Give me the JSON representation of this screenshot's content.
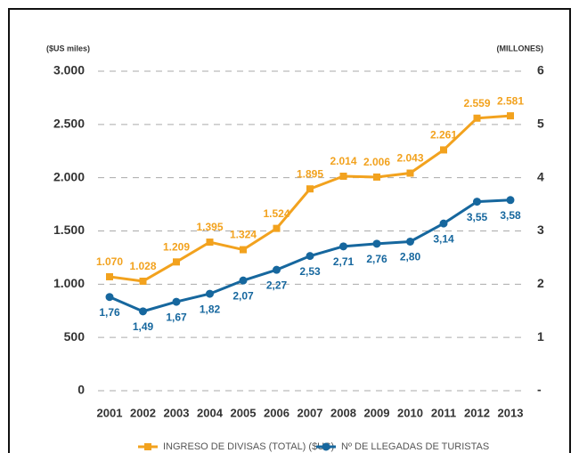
{
  "chart_data": {
    "type": "line",
    "ylabel": "($US miles)",
    "y2label": "(MILLONES)",
    "categories": [
      "2001",
      "2002",
      "2003",
      "2004",
      "2005",
      "2006",
      "2007",
      "2008",
      "2009",
      "2010",
      "2011",
      "2012",
      "2013"
    ],
    "series": [
      {
        "name": "INGRESO DE DIVISAS (TOTAL) ($US)",
        "color": "#f2a21e",
        "values": [
          1070,
          1028,
          1209,
          1395,
          1324,
          1524,
          1895,
          2014,
          2006,
          2043,
          2261,
          2559,
          2581
        ],
        "value_labels": [
          "1.070",
          "1.028",
          "1.209",
          "1.395",
          "1.324",
          "1.524",
          "1.895",
          "2.014",
          "2.006",
          "2.043",
          "2.261",
          "2.559",
          "2.581"
        ]
      },
      {
        "name": "Nº DE LLEGADAS DE TURISTAS",
        "color": "#16679e",
        "axis": "y2",
        "values": [
          1.76,
          1.49,
          1.67,
          1.82,
          2.07,
          2.27,
          2.53,
          2.71,
          2.76,
          2.8,
          3.14,
          3.55,
          3.58
        ],
        "value_labels": [
          "1,76",
          "1,49",
          "1,67",
          "1,82",
          "2,07",
          "2,27",
          "2,53",
          "2,71",
          "2,76",
          "2,80",
          "3,14",
          "3,55",
          "3,58"
        ]
      }
    ],
    "ylim": [
      0,
      3000
    ],
    "yticks": [
      0,
      500,
      {
        "value": 1000,
        "label": "1.000"
      },
      {
        "value": 1500,
        "label": "1.500"
      },
      {
        "value": 2000,
        "label": "2.000"
      },
      {
        "value": 2500,
        "label": "2.500"
      },
      {
        "value": 3000,
        "label": "3.000"
      }
    ],
    "y2lim": [
      0,
      6
    ],
    "y2ticks": [
      {
        "value": 0,
        "label": "-"
      },
      1,
      2,
      3,
      4,
      5,
      6
    ],
    "grid": true,
    "legend": "bottom"
  }
}
